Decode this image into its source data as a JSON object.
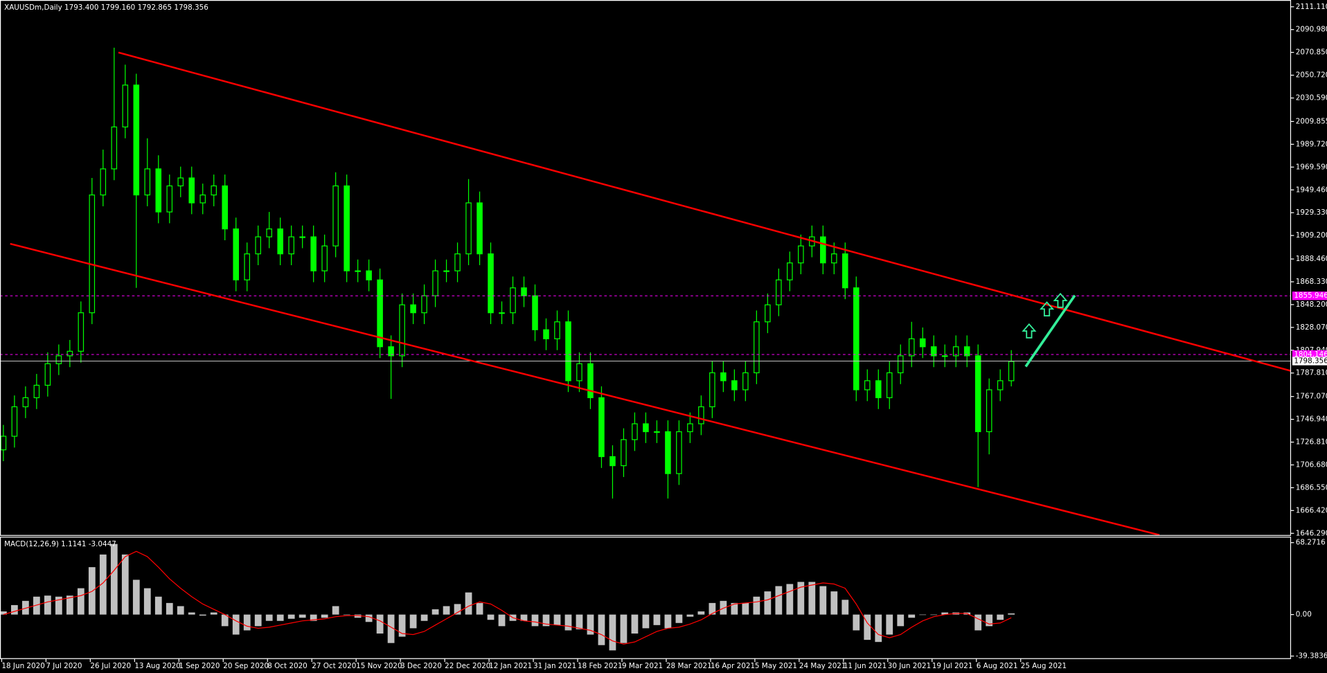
{
  "chart_data": [
    {
      "type": "candlestick",
      "title": "XAUUSDm,Daily  1793.400 1799.160 1792.865 1798.356",
      "date_labels": [
        "18 Jun 2020",
        "7 Jul 2020",
        "26 Jul 2020",
        "13 Aug 2020",
        "1 Sep 2020",
        "20 Sep 2020",
        "8 Oct 2020",
        "27 Oct 2020",
        "15 Nov 2020",
        "3 Dec 2020",
        "22 Dec 2020",
        "12 Jan 2021",
        "31 Jan 2021",
        "18 Feb 2021",
        "9 Mar 2021",
        "28 Mar 2021",
        "16 Apr 2021",
        "5 May 2021",
        "24 May 2021",
        "11 Jun 2021",
        "30 Jun 2021",
        "19 Jul 2021",
        "6 Aug 2021",
        "25 Aug 2021"
      ],
      "open": [
        1720,
        1732,
        1758,
        1766,
        1777,
        1796,
        1803,
        1807,
        1841,
        1945,
        1968,
        2005,
        2042,
        1945,
        1968,
        1930,
        1953,
        1960,
        1938,
        1945,
        1953,
        1915,
        1870,
        1893,
        1908,
        1915,
        1893,
        1908,
        1908,
        1878,
        1900,
        1953,
        1878,
        1878,
        1870,
        1811,
        1803,
        1848,
        1841,
        1856,
        1878,
        1878,
        1893,
        1938,
        1893,
        1841,
        1841,
        1863,
        1856,
        1826,
        1818,
        1833,
        1781,
        1796,
        1766,
        1714,
        1706,
        1729,
        1743,
        1736,
        1736,
        1699,
        1736,
        1743,
        1758,
        1788,
        1781,
        1773,
        1788,
        1833,
        1848,
        1870,
        1885,
        1900,
        1908,
        1885,
        1893,
        1863,
        1773,
        1781,
        1766,
        1788,
        1803,
        1818,
        1811,
        1803,
        1803,
        1811,
        1803,
        1736,
        1773,
        1781
      ],
      "high": [
        1742,
        1768,
        1776,
        1787,
        1806,
        1813,
        1817,
        1851,
        1960,
        1985,
        2075,
        2060,
        2052,
        1995,
        1980,
        1963,
        1970,
        1970,
        1955,
        1963,
        1963,
        1925,
        1903,
        1918,
        1930,
        1925,
        1918,
        1918,
        1918,
        1910,
        1965,
        1963,
        1888,
        1888,
        1880,
        1821,
        1858,
        1858,
        1866,
        1888,
        1888,
        1903,
        1959,
        1948,
        1903,
        1851,
        1873,
        1873,
        1866,
        1836,
        1843,
        1843,
        1806,
        1806,
        1776,
        1724,
        1739,
        1753,
        1753,
        1746,
        1746,
        1746,
        1753,
        1768,
        1798,
        1798,
        1791,
        1798,
        1843,
        1858,
        1880,
        1895,
        1910,
        1918,
        1918,
        1903,
        1903,
        1873,
        1791,
        1791,
        1798,
        1813,
        1833,
        1828,
        1821,
        1813,
        1821,
        1821,
        1813,
        1783,
        1791,
        1808
      ],
      "low": [
        1710,
        1722,
        1748,
        1756,
        1767,
        1786,
        1793,
        1797,
        1831,
        1935,
        1958,
        1995,
        1863,
        1935,
        1920,
        1920,
        1943,
        1928,
        1928,
        1935,
        1905,
        1860,
        1860,
        1883,
        1898,
        1883,
        1883,
        1898,
        1868,
        1868,
        1890,
        1868,
        1868,
        1860,
        1801,
        1765,
        1793,
        1831,
        1831,
        1846,
        1868,
        1868,
        1883,
        1883,
        1831,
        1831,
        1831,
        1846,
        1816,
        1808,
        1808,
        1771,
        1771,
        1756,
        1704,
        1677,
        1696,
        1719,
        1726,
        1726,
        1677,
        1689,
        1726,
        1733,
        1748,
        1771,
        1763,
        1763,
        1778,
        1823,
        1838,
        1860,
        1875,
        1890,
        1875,
        1875,
        1853,
        1763,
        1763,
        1756,
        1756,
        1778,
        1793,
        1801,
        1793,
        1793,
        1793,
        1793,
        1687,
        1716,
        1763,
        1776
      ],
      "close": [
        1732,
        1758,
        1766,
        1777,
        1796,
        1803,
        1807,
        1841,
        1945,
        1968,
        2005,
        2042,
        1945,
        1968,
        1930,
        1953,
        1960,
        1938,
        1945,
        1953,
        1915,
        1870,
        1893,
        1908,
        1915,
        1893,
        1908,
        1908,
        1878,
        1900,
        1953,
        1878,
        1878,
        1870,
        1811,
        1803,
        1848,
        1841,
        1856,
        1878,
        1878,
        1893,
        1938,
        1893,
        1841,
        1841,
        1863,
        1856,
        1826,
        1818,
        1833,
        1781,
        1796,
        1766,
        1714,
        1706,
        1729,
        1743,
        1736,
        1736,
        1699,
        1736,
        1743,
        1758,
        1788,
        1781,
        1773,
        1788,
        1833,
        1848,
        1870,
        1885,
        1900,
        1908,
        1885,
        1893,
        1863,
        1773,
        1781,
        1766,
        1788,
        1803,
        1818,
        1811,
        1803,
        1803,
        1811,
        1803,
        1736,
        1773,
        1781,
        1798
      ],
      "color": "#00ff00",
      "ylim": [
        1644.8,
        2117.09
      ],
      "yticks": [
        {
          "value": 2111.11,
          "label": "2111.110"
        },
        {
          "value": 2090.98,
          "label": "2090.980"
        },
        {
          "value": 2070.85,
          "label": "2070.850"
        },
        {
          "value": 2050.72,
          "label": "2050.720"
        },
        {
          "value": 2030.59,
          "label": "2030.590"
        },
        2009.855,
        {
          "value": 1989.72,
          "label": "1989.720"
        },
        {
          "value": 1969.59,
          "label": "1969.590"
        },
        {
          "value": 1949.46,
          "label": "1949.460"
        },
        {
          "value": 1929.33,
          "label": "1929.330"
        },
        {
          "value": 1909.2,
          "label": "1909.200"
        },
        {
          "value": 1888.46,
          "label": "1888.460"
        },
        {
          "value": 1868.33,
          "label": "1868.330"
        },
        {
          "value": 1848.2,
          "label": "1848.200"
        },
        {
          "value": 1828.07,
          "label": "1828.070"
        },
        {
          "value": 1807.94,
          "label": "1807.940"
        },
        {
          "value": 1787.81,
          "label": "1787.810"
        },
        {
          "value": 1767.07,
          "label": "1767.070"
        },
        {
          "value": 1746.94,
          "label": "1746.940"
        },
        {
          "value": 1726.81,
          "label": "1726.810"
        },
        {
          "value": 1706.68,
          "label": "1706.680"
        },
        {
          "value": 1686.55,
          "label": "1686.550"
        },
        {
          "value": 1666.42,
          "label": "1666.420"
        },
        {
          "value": 1646.29,
          "label": "1646.290"
        }
      ],
      "hlines": [
        1855.946,
        1804.146
      ],
      "hline_color": "#ff00ff",
      "current_price": 1798.356
    },
    {
      "type": "macd",
      "title": "MACD(12,26,9) 1.1141 -3.0447",
      "values": [
        3,
        9,
        13,
        17,
        18,
        17,
        18,
        25,
        45,
        57,
        67,
        57,
        33,
        25,
        17,
        11,
        8,
        2,
        -1,
        2,
        -11,
        -19,
        -15,
        -11,
        -6,
        -6,
        -4,
        -3,
        -6,
        -3,
        8,
        0,
        -3,
        -7,
        -18,
        -27,
        -21,
        -13,
        -6,
        5,
        8,
        10,
        21,
        11,
        -5,
        -11,
        -6,
        -6,
        -11,
        -11,
        -10,
        -15,
        -14,
        -19,
        -29,
        -34,
        -27,
        -18,
        -13,
        -10,
        -13,
        -8,
        -2,
        3,
        11,
        13,
        11,
        11,
        17,
        22,
        27,
        29,
        31,
        31,
        27,
        22,
        14,
        -15,
        -24,
        -26,
        -19,
        -11,
        -3,
        0,
        0,
        2,
        2,
        2,
        -15,
        -11,
        -5,
        1.1
      ],
      "signal": [
        0,
        3,
        6,
        9,
        12,
        14,
        16,
        18,
        22,
        30,
        42,
        55,
        60,
        55,
        45,
        34,
        25,
        17,
        10,
        5,
        0,
        -6,
        -11,
        -13,
        -12,
        -10,
        -8,
        -6,
        -5,
        -4,
        -2,
        -1,
        -1,
        -2,
        -6,
        -12,
        -18,
        -19,
        -16,
        -10,
        -4,
        2,
        8,
        12,
        10,
        4,
        -3,
        -6,
        -7,
        -9,
        -10,
        -11,
        -13,
        -15,
        -19,
        -25,
        -28,
        -26,
        -21,
        -16,
        -13,
        -12,
        -9,
        -5,
        1,
        6,
        10,
        11,
        12,
        14,
        18,
        22,
        26,
        28,
        30,
        29,
        25,
        10,
        -8,
        -19,
        -22,
        -19,
        -12,
        -6,
        -2,
        0,
        1,
        1,
        -4,
        -9,
        -8,
        -3
      ],
      "color": "#c0c0c0",
      "signal_color": "#ff0000",
      "ylim": [
        -41.8,
        73.9
      ],
      "yticks": [
        68.2716,
        {
          "value": 0,
          "label": "0.00"
        },
        -39.3836
      ]
    }
  ]
}
